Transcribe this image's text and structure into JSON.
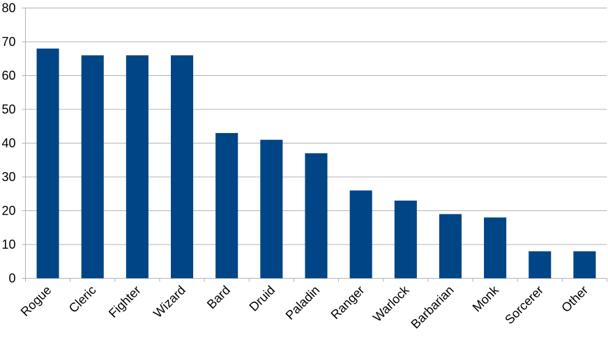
{
  "chart_data": {
    "type": "bar",
    "categories": [
      "Rogue",
      "Cleric",
      "Fighter",
      "Wizard",
      "Bard",
      "Druid",
      "Paladin",
      "Ranger",
      "Warlock",
      "Barbarian",
      "Monk",
      "Sorcerer",
      "Other"
    ],
    "values": [
      68,
      66,
      66,
      66,
      43,
      41,
      37,
      26,
      23,
      19,
      18,
      8,
      8
    ],
    "color": "#004586",
    "ylim": [
      0,
      80
    ],
    "yticks": [
      0,
      10,
      20,
      30,
      40,
      50,
      60,
      70,
      80
    ],
    "grid": true
  }
}
